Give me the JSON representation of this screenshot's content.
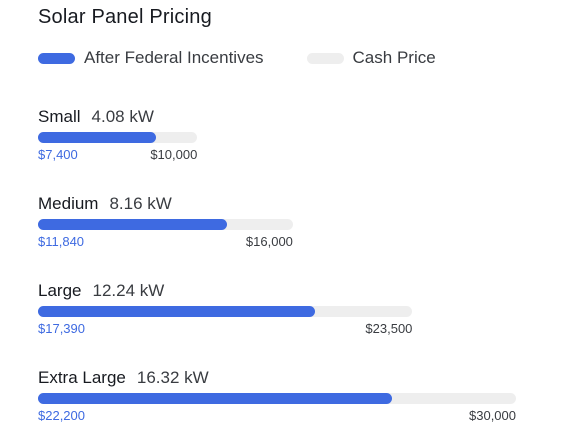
{
  "title": "Solar Panel Pricing",
  "legend": {
    "incentive_label": "After Federal Incentives",
    "cash_label": "Cash Price"
  },
  "colors": {
    "incentive": "#3e6ae1",
    "cash": "#eeeeee",
    "incentive_text": "#3e6ae1"
  },
  "tiers": [
    {
      "name": "Small",
      "size": "4.08 kW",
      "incentive_price": "$7,400",
      "cash_price": "$10,000",
      "incentive_value": 7400,
      "cash_value": 10000
    },
    {
      "name": "Medium",
      "size": "8.16 kW",
      "incentive_price": "$11,840",
      "cash_price": "$16,000",
      "incentive_value": 11840,
      "cash_value": 16000
    },
    {
      "name": "Large",
      "size": "12.24 kW",
      "incentive_price": "$17,390",
      "cash_price": "$23,500",
      "incentive_value": 17390,
      "cash_value": 23500
    },
    {
      "name": "Extra Large",
      "size": "16.32 kW",
      "incentive_price": "$22,200",
      "cash_price": "$30,000",
      "incentive_value": 22200,
      "cash_value": 30000
    }
  ]
}
